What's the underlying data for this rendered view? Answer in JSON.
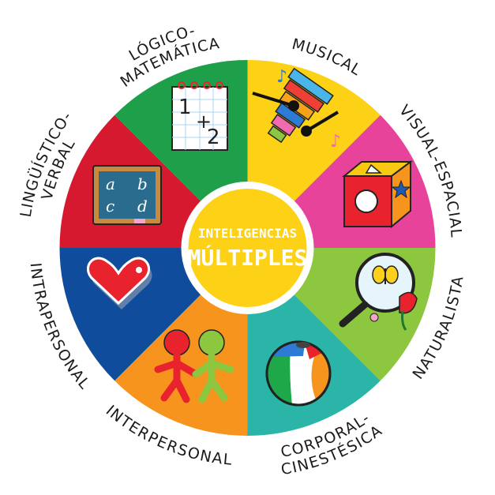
{
  "center": {
    "line1": "INTELIGENCIAS",
    "line2": "MÚLTIPLES"
  },
  "segments": [
    {
      "key": "musical",
      "color": "#fcd116",
      "lines": [
        "MUSICAL"
      ],
      "icon": "xylophone-icon"
    },
    {
      "key": "visual",
      "color": "#e8439b",
      "lines": [
        "VISUAL-ESPACIAL"
      ],
      "icon": "shape-cube-icon"
    },
    {
      "key": "naturalista",
      "color": "#8dc63f",
      "lines": [
        "NATURALISTA"
      ],
      "icon": "magnifier-butterfly-icon"
    },
    {
      "key": "corporal",
      "color": "#2bb5a8",
      "lines": [
        "CORPORAL-",
        "CINESTÉSICA"
      ],
      "icon": "beach-ball-icon"
    },
    {
      "key": "interpersonal",
      "color": "#f7941d",
      "lines": [
        "INTERPERSONAL"
      ],
      "icon": "holding-hands-icon"
    },
    {
      "key": "intrapersonal",
      "color": "#0f4c9c",
      "lines": [
        "INTRAPERSONAL"
      ],
      "icon": "heart-icon"
    },
    {
      "key": "linguistico",
      "color": "#d7192f",
      "lines": [
        "LINGÜÍSTICO-",
        "VERBAL"
      ],
      "icon": "blackboard-icon"
    },
    {
      "key": "logico",
      "color": "#1ea04a",
      "lines": [
        "LÓGICO-",
        "MATEMÁTICA"
      ],
      "icon": "math-notepad-icon"
    }
  ],
  "icons": {
    "blackboard": {
      "letters": [
        "a",
        "b",
        "c",
        "d"
      ]
    },
    "notepad": {
      "top": "1",
      "op": "+",
      "bottom": "2"
    }
  }
}
